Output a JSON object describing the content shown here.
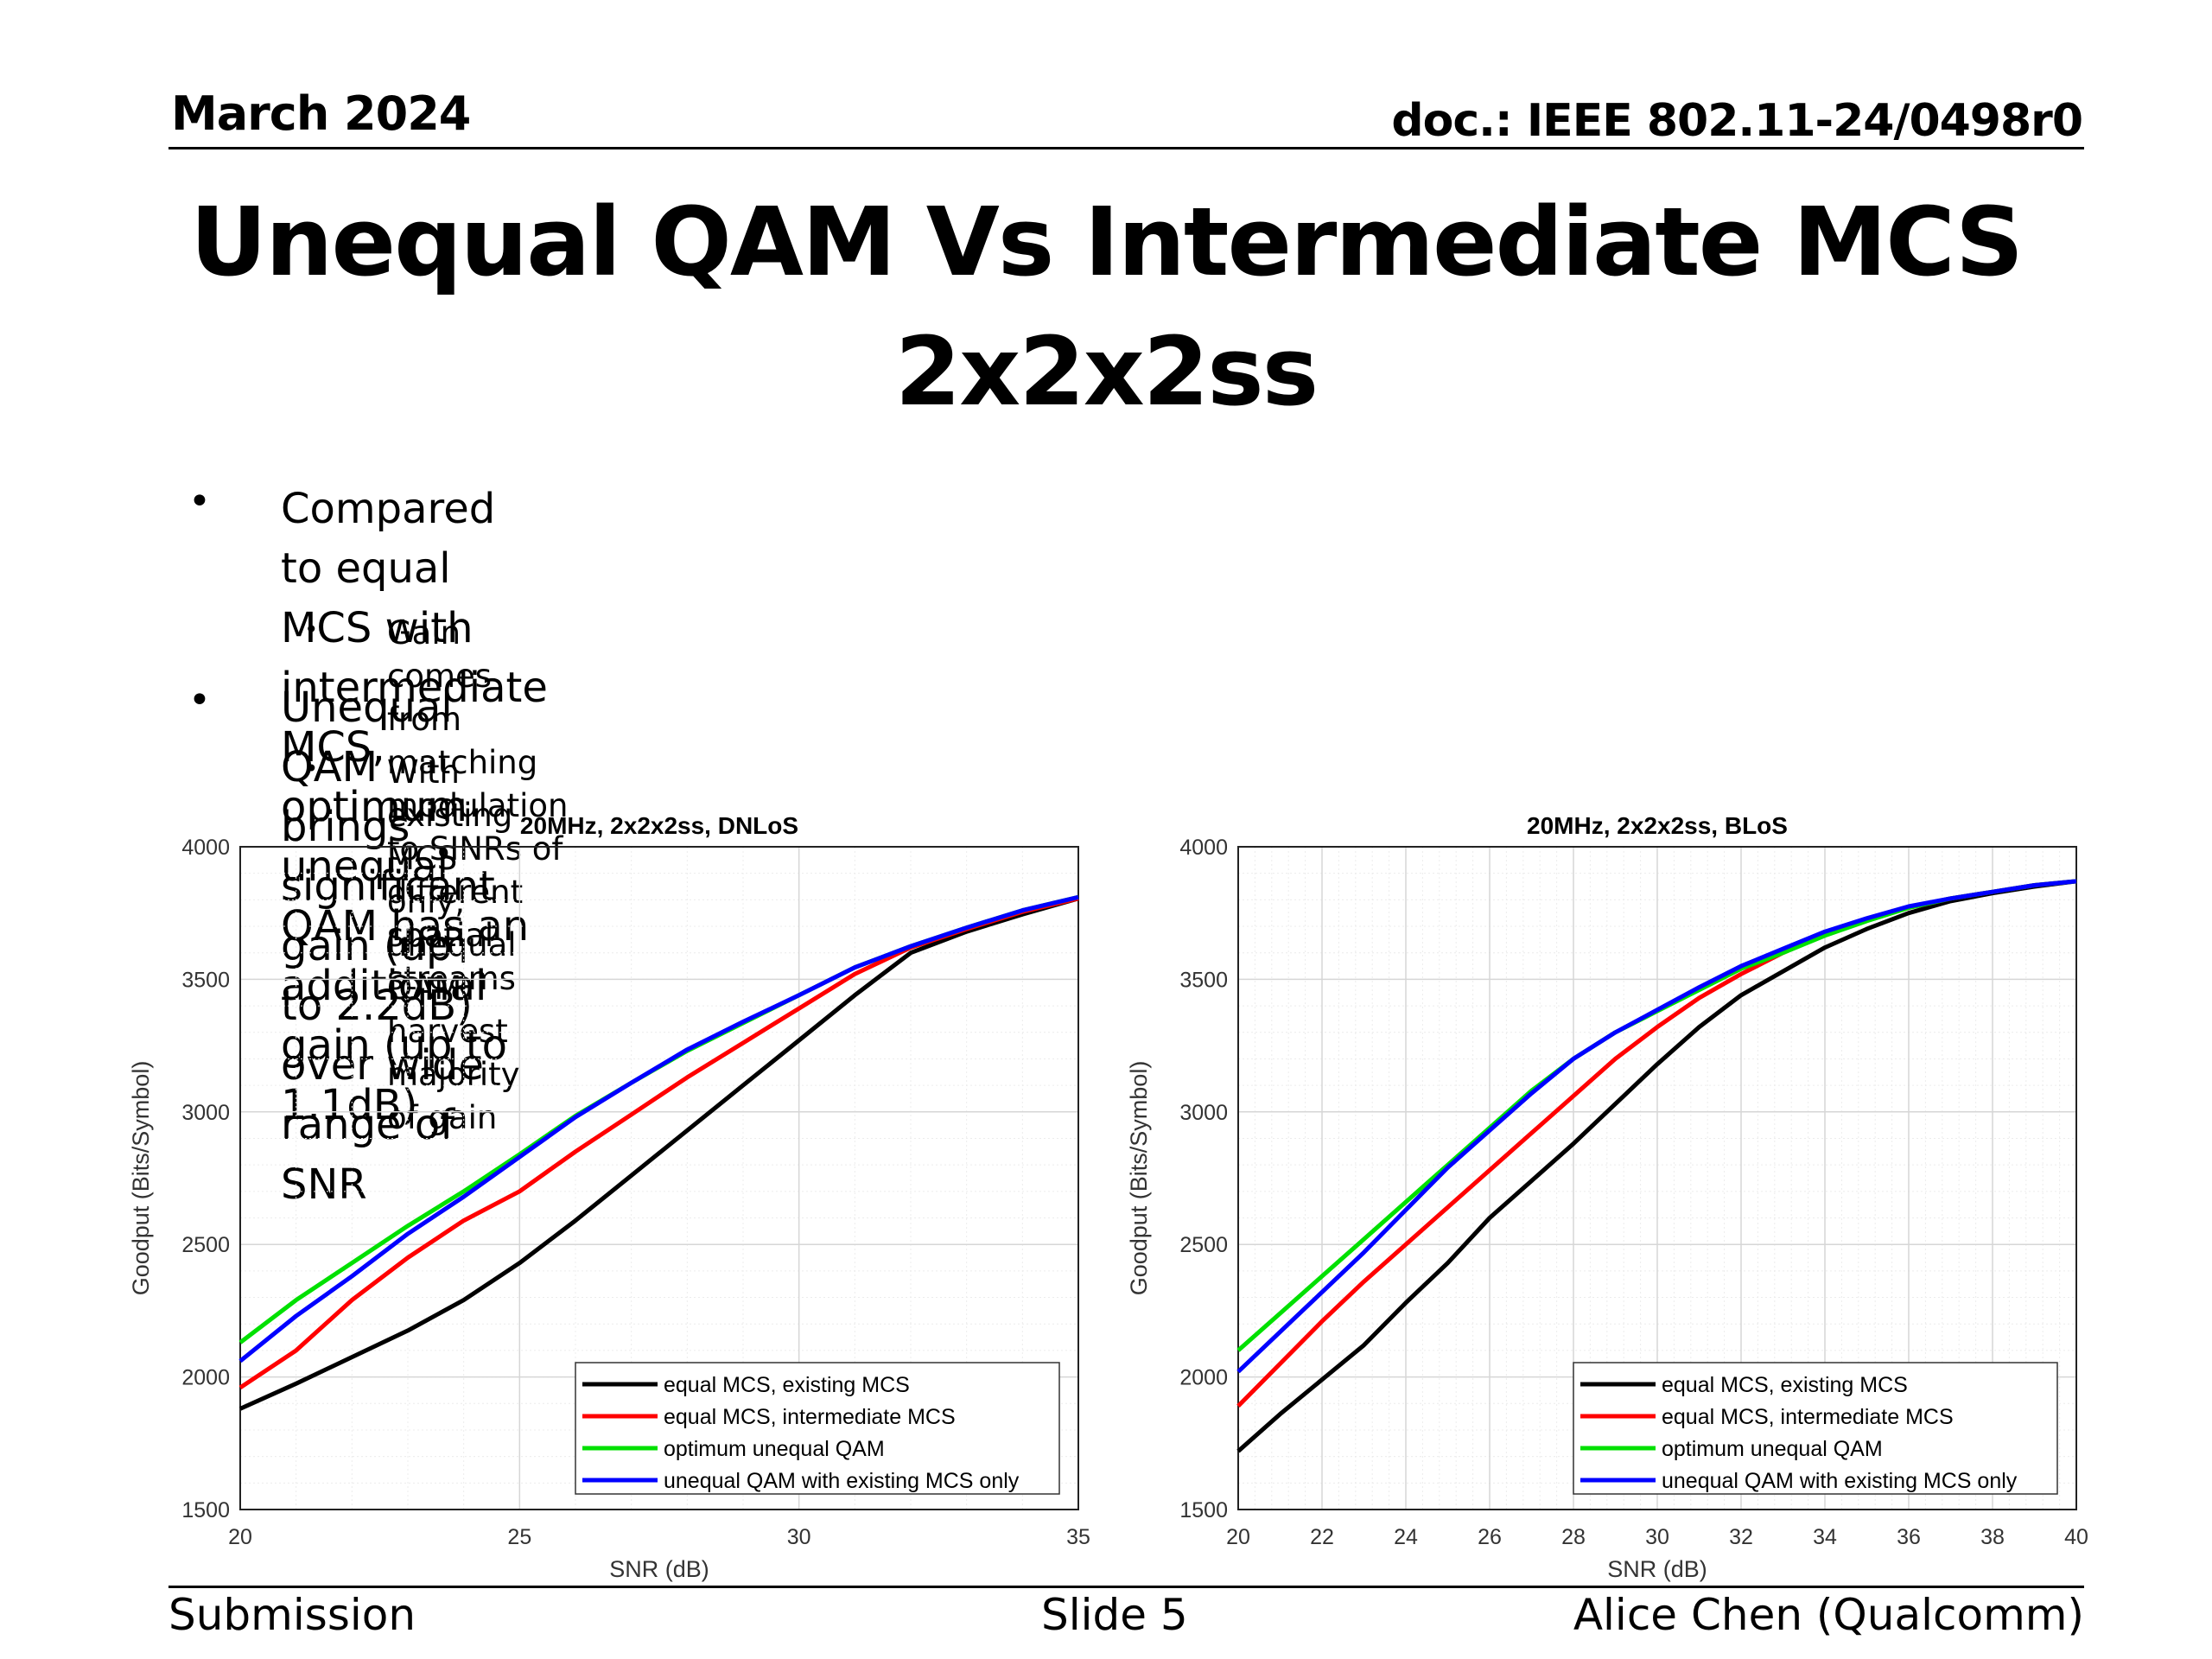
{
  "header": {
    "date": "March 2024",
    "doc": "doc.: IEEE 802.11-24/0498r0"
  },
  "slide": {
    "title_line1": "Unequal QAM Vs Intermediate MCS",
    "title_line2": "2x2x2ss"
  },
  "bullets": [
    {
      "text_line1": "Compared to equal MCS with intermediate MCS, optimum unequal QAM has an",
      "text_line2": "additional gain (up to 1.1dB)",
      "sub": "Gain comes from matching modulation to SINRs of different spatial streams"
    },
    {
      "text_line1": "Unequal QAM brings significant gain (up to 2.2dB) over wide range of SNR",
      "sub": "With existing MCS only, unequal QAM harvest majority of gain"
    }
  ],
  "bullet_symbol": "•",
  "series_colors": {
    "equal MCS, existing MCS": "#000000",
    "equal MCS, intermediate MCS": "#ff0000",
    "optimum unequal QAM": "#00e000",
    "unequal QAM with existing MCS only": "#0000ff"
  },
  "chart_data": [
    {
      "type": "line",
      "title": "20MHz, 2x2x2ss, DNLoS",
      "xlabel": "SNR (dB)",
      "ylabel": "Goodput (Bits/Symbol)",
      "xlim": [
        20,
        35
      ],
      "ylim": [
        1500,
        4000
      ],
      "xticks": [
        20,
        25,
        30,
        35
      ],
      "yticks": [
        1500,
        2000,
        2500,
        3000,
        3500,
        4000
      ],
      "grid": true,
      "minor_grid": true,
      "legend_position": "bottom-right",
      "x": [
        20,
        21,
        22,
        23,
        24,
        25,
        26,
        27,
        28,
        29,
        30,
        31,
        32,
        33,
        34,
        35
      ],
      "series": [
        {
          "name": "equal MCS, existing MCS",
          "values": [
            1880,
            1975,
            2075,
            2175,
            2290,
            2430,
            2590,
            2760,
            2930,
            3100,
            3270,
            3440,
            3600,
            3680,
            3745,
            3805
          ]
        },
        {
          "name": "equal MCS, intermediate MCS",
          "values": [
            1960,
            2100,
            2290,
            2450,
            2590,
            2700,
            2850,
            2990,
            3130,
            3260,
            3390,
            3520,
            3620,
            3690,
            3755,
            3805
          ]
        },
        {
          "name": "optimum unequal QAM",
          "values": [
            2130,
            2290,
            2430,
            2570,
            2700,
            2840,
            2985,
            3110,
            3230,
            3335,
            3440,
            3545,
            3625,
            3695,
            3760,
            3810
          ]
        },
        {
          "name": "unequal QAM with existing MCS only",
          "values": [
            2060,
            2230,
            2380,
            2540,
            2680,
            2830,
            2980,
            3110,
            3235,
            3340,
            3440,
            3545,
            3625,
            3695,
            3760,
            3810
          ]
        }
      ]
    },
    {
      "type": "line",
      "title": "20MHz, 2x2x2ss, BLoS",
      "xlabel": "SNR (dB)",
      "ylabel": "Goodput (Bits/Symbol)",
      "xlim": [
        20,
        40
      ],
      "ylim": [
        1500,
        4000
      ],
      "xticks": [
        20,
        22,
        24,
        26,
        28,
        30,
        32,
        34,
        36,
        38,
        40
      ],
      "yticks": [
        1500,
        2000,
        2500,
        3000,
        3500,
        4000
      ],
      "grid": true,
      "minor_grid": true,
      "legend_position": "bottom-right",
      "x": [
        20,
        21,
        22,
        23,
        24,
        25,
        26,
        27,
        28,
        29,
        30,
        31,
        32,
        33,
        34,
        35,
        36,
        37,
        38,
        39,
        40
      ],
      "series": [
        {
          "name": "equal MCS, existing MCS",
          "values": [
            1720,
            1860,
            1990,
            2120,
            2280,
            2430,
            2600,
            2740,
            2880,
            3030,
            3180,
            3320,
            3440,
            3530,
            3620,
            3690,
            3750,
            3795,
            3825,
            3850,
            3870
          ]
        },
        {
          "name": "equal MCS, intermediate MCS",
          "values": [
            1890,
            2050,
            2210,
            2360,
            2500,
            2640,
            2780,
            2920,
            3060,
            3200,
            3320,
            3430,
            3520,
            3600,
            3670,
            3725,
            3770,
            3805,
            3830,
            3855,
            3870
          ]
        },
        {
          "name": "optimum unequal QAM",
          "values": [
            2100,
            2240,
            2380,
            2520,
            2660,
            2800,
            2940,
            3080,
            3200,
            3300,
            3380,
            3460,
            3540,
            3600,
            3665,
            3720,
            3770,
            3805,
            3830,
            3855,
            3870
          ]
        },
        {
          "name": "unequal QAM with existing MCS only",
          "values": [
            2020,
            2170,
            2320,
            2470,
            2630,
            2790,
            2930,
            3070,
            3200,
            3300,
            3385,
            3470,
            3550,
            3615,
            3680,
            3730,
            3775,
            3805,
            3830,
            3855,
            3870
          ]
        }
      ]
    }
  ],
  "footer": {
    "left": "Submission",
    "center": "Slide 5",
    "right": "Alice Chen (Qualcomm)"
  }
}
